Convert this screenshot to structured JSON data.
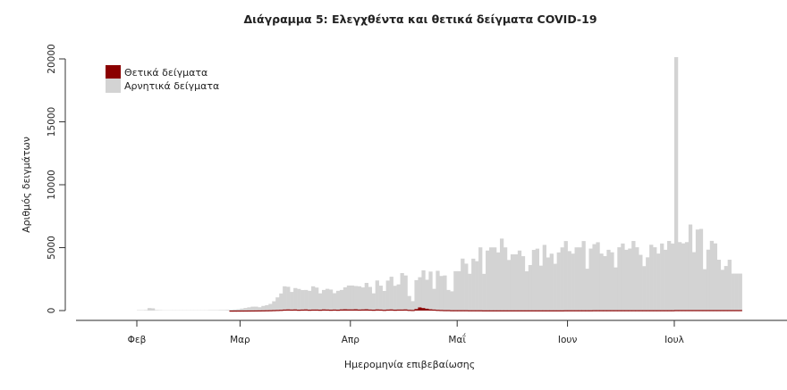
{
  "chart_data": {
    "type": "bar",
    "stacked": true,
    "title": "Διάγραμμα 5: Ελεγχθέντα και θετικά δείγματα COVID-19",
    "xlabel": "Ημερομηνία επιβεβαίωσης",
    "ylabel": "Αριθμός δειγμάτων",
    "ylim": [
      0,
      20500
    ],
    "yticks": [
      "0",
      "5000",
      "10000",
      "15000",
      "20000"
    ],
    "xticks": [
      {
        "date": "2020-02-01",
        "label": "Φεβ"
      },
      {
        "date": "2020-03-01",
        "label": "Μαρ"
      },
      {
        "date": "2020-04-01",
        "label": "Απρ"
      },
      {
        "date": "2020-05-01",
        "label": "Μαΐ"
      },
      {
        "date": "2020-06-01",
        "label": "Ιουν"
      },
      {
        "date": "2020-07-01",
        "label": "Ιουλ"
      }
    ],
    "legend_position": "top-left",
    "grid": false,
    "series": [
      {
        "name": "Θετικά δείγματα",
        "color": "#8B0000",
        "values": [
          0,
          0,
          0,
          0,
          0,
          0,
          0,
          0,
          0,
          0,
          0,
          0,
          0,
          0,
          0,
          0,
          0,
          0,
          0,
          0,
          0,
          0,
          0,
          0,
          0,
          0,
          2,
          3,
          4,
          5,
          6,
          8,
          10,
          12,
          15,
          20,
          25,
          30,
          40,
          50,
          60,
          80,
          90,
          80,
          90,
          70,
          80,
          90,
          70,
          80,
          80,
          70,
          90,
          80,
          70,
          80,
          70,
          90,
          100,
          90,
          90,
          100,
          80,
          90,
          100,
          80,
          70,
          90,
          80,
          60,
          80,
          90,
          70,
          80,
          80,
          90,
          60,
          50,
          120,
          250,
          200,
          150,
          100,
          80,
          60,
          50,
          40,
          40,
          30,
          30,
          30,
          30,
          30,
          25,
          25,
          25,
          25,
          20,
          20,
          20,
          20,
          20,
          20,
          20,
          20,
          20,
          20,
          20,
          20,
          20,
          20,
          20,
          20,
          20,
          20,
          20,
          20,
          20,
          20,
          20,
          25,
          25,
          25,
          25,
          25,
          25,
          25,
          25,
          30,
          30,
          30,
          30,
          30,
          30,
          30,
          30,
          30,
          30,
          30,
          30,
          30,
          30,
          30,
          30,
          30,
          30,
          30,
          30,
          30,
          30,
          30,
          40,
          40,
          40,
          40,
          40,
          40,
          40,
          40,
          40,
          40,
          40,
          40,
          40,
          40,
          40,
          40,
          40,
          40,
          40
        ]
      },
      {
        "name": "Αρνητικά δείγματα",
        "color": "#D3D3D3",
        "values": [
          30,
          30,
          40,
          200,
          180,
          40,
          30,
          20,
          20,
          20,
          20,
          20,
          20,
          20,
          20,
          20,
          20,
          20,
          20,
          20,
          30,
          30,
          30,
          40,
          40,
          50,
          60,
          80,
          100,
          150,
          200,
          250,
          300,
          300,
          250,
          350,
          400,
          500,
          700,
          1000,
          1300,
          1850,
          1800,
          1400,
          1700,
          1650,
          1550,
          1550,
          1500,
          1850,
          1750,
          1300,
          1550,
          1650,
          1600,
          1300,
          1500,
          1550,
          1750,
          1900,
          1900,
          1850,
          1850,
          1750,
          2100,
          1800,
          1300,
          2300,
          1900,
          1500,
          2300,
          2600,
          1900,
          2000,
          2900,
          2700,
          1100,
          700,
          2300,
          2400,
          3000,
          2300,
          3000,
          1650,
          3100,
          2700,
          2750,
          1600,
          1500,
          3100,
          3100,
          4100,
          3700,
          2900,
          4100,
          3900,
          5000,
          2900,
          4750,
          5000,
          5000,
          4600,
          5700,
          5000,
          4000,
          4450,
          4450,
          4750,
          4300,
          3100,
          3600,
          4800,
          4900,
          3550,
          5200,
          4200,
          4500,
          3700,
          4600,
          5000,
          5500,
          4700,
          4500,
          5000,
          5000,
          5500,
          3300,
          4900,
          5250,
          5400,
          4500,
          4300,
          4800,
          4600,
          3400,
          5000,
          5300,
          4800,
          4900,
          5500,
          5000,
          4400,
          3500,
          4200,
          5200,
          5000,
          4500,
          5300,
          4800,
          5500,
          5300,
          20100,
          5400,
          5300,
          5400,
          6800,
          4600,
          6400,
          6450,
          3250,
          4800,
          5500,
          5300,
          4000,
          3200,
          3500,
          4000,
          2900,
          2900,
          2900
        ]
      }
    ],
    "x_start": "2020-02-01",
    "x_end": "2020-07-19",
    "x_step": "1 day"
  }
}
